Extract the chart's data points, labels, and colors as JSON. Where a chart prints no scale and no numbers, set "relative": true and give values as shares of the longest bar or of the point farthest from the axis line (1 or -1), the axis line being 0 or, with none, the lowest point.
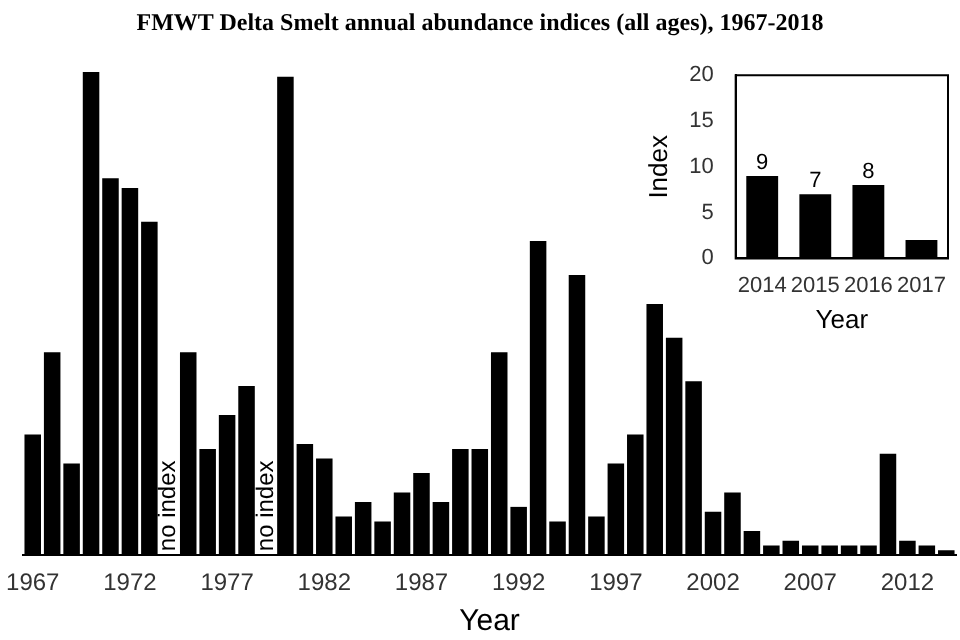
{
  "chart_data": [
    {
      "type": "bar",
      "title": "FMWT Delta Smelt annual abundance indices (all ages), 1967-2018",
      "xlabel": "Year",
      "relative": true,
      "tick_labels": "x",
      "grid": false,
      "legend": false,
      "color": "#000000",
      "categories": [
        "1967",
        null,
        null,
        null,
        null,
        "1972",
        null,
        null,
        null,
        null,
        "1977",
        null,
        null,
        null,
        null,
        "1982",
        null,
        null,
        null,
        null,
        "1987",
        null,
        null,
        null,
        null,
        "1992",
        null,
        null,
        null,
        null,
        "1997",
        null,
        null,
        null,
        null,
        "2002",
        null,
        null,
        null,
        null,
        "2007",
        null,
        null,
        null,
        null,
        "2012",
        null,
        null
      ],
      "values": [
        0.25,
        0.42,
        0.19,
        1,
        0.78,
        0.76,
        0.69,
        null,
        0.42,
        0.22,
        0.29,
        0.35,
        null,
        0.99,
        0.23,
        0.2,
        0.08,
        0.11,
        0.07,
        0.13,
        0.17,
        0.11,
        0.22,
        0.22,
        0.42,
        0.1,
        0.65,
        0.07,
        0.58,
        0.08,
        0.19,
        0.25,
        0.52,
        0.45,
        0.36,
        0.09,
        0.13,
        0.05,
        0.02,
        0.03,
        0.02,
        0.02,
        0.02,
        0.02,
        0.21,
        0.03,
        0.02,
        0.01
      ],
      "annotations": [
        "no index",
        "no index"
      ]
    },
    {
      "type": "bar",
      "xlabel": "Year",
      "ylabel": "Index",
      "grid": false,
      "legend": false,
      "color": "#000000",
      "categories": [
        "2014",
        "2015",
        "2016",
        "2017"
      ],
      "values": [
        9,
        7,
        8,
        2
      ],
      "value_labels": [
        "9",
        "7",
        "8",
        null
      ],
      "ylim": [
        0,
        20
      ],
      "yticks": [
        0,
        5,
        10,
        15,
        20
      ]
    }
  ]
}
